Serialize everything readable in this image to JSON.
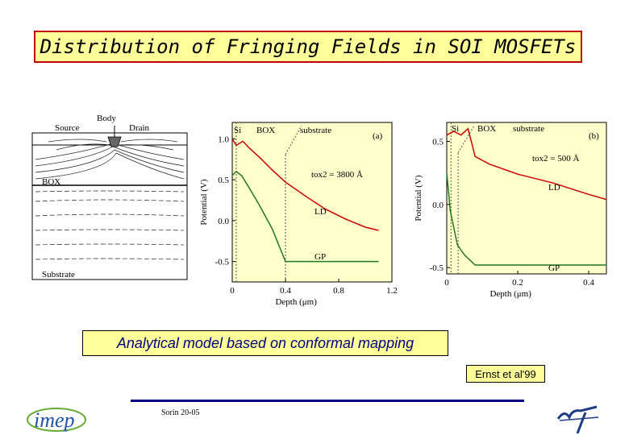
{
  "title": "Distribution of Fringing Fields in SOI MOSFETs",
  "left_sketch": {
    "labels": {
      "body": "Body",
      "source": "Source",
      "drain": "Drain",
      "box": "BOX",
      "substrate": "Substrate"
    }
  },
  "chart_data": [
    {
      "type": "line",
      "panel_label": "(a)",
      "xlabel": "Depth (μm)",
      "ylabel": "Potential (V)",
      "xlim": [
        0,
        1.2
      ],
      "ylim": [
        -0.75,
        1.2
      ],
      "xticks": [
        "0",
        "0.4",
        "0.8",
        "1.2"
      ],
      "yticks": [
        "1.0",
        "0.5",
        "0.0",
        "-0.5"
      ],
      "region_labels": [
        "Si",
        "BOX",
        "substrate"
      ],
      "annotation": "tox2 = 3800 Å",
      "series": [
        {
          "name": "LD",
          "color": "#cc0000",
          "x": [
            0,
            0.03,
            0.08,
            0.12,
            0.2,
            0.3,
            0.4,
            0.55,
            0.7,
            0.85,
            1.0,
            1.1
          ],
          "y": [
            1.0,
            0.92,
            0.97,
            0.9,
            0.78,
            0.62,
            0.47,
            0.3,
            0.14,
            0.02,
            -0.08,
            -0.12
          ]
        },
        {
          "name": "GP",
          "color": "#227722",
          "x": [
            0,
            0.03,
            0.07,
            0.12,
            0.2,
            0.3,
            0.4,
            1.1
          ],
          "y": [
            0.55,
            0.6,
            0.55,
            0.42,
            0.2,
            -0.1,
            -0.5,
            -0.5
          ]
        }
      ]
    },
    {
      "type": "line",
      "panel_label": "(b)",
      "xlabel": "Depth (μm)",
      "ylabel": "Potential (V)",
      "xlim": [
        0,
        0.45
      ],
      "ylim": [
        -0.55,
        0.65
      ],
      "xticks": [
        "0",
        "0.2",
        "0.4"
      ],
      "yticks": [
        "0.5",
        "0.0",
        "-0.5"
      ],
      "region_labels": [
        "Si",
        "BOX",
        "substrate"
      ],
      "annotation": "tox2 = 500 Å",
      "series": [
        {
          "name": "LD",
          "color": "#cc0000",
          "x": [
            0,
            0.02,
            0.04,
            0.06,
            0.08,
            0.12,
            0.2,
            0.3,
            0.4,
            0.45
          ],
          "y": [
            0.55,
            0.58,
            0.55,
            0.6,
            0.38,
            0.32,
            0.24,
            0.17,
            0.08,
            0.04
          ]
        },
        {
          "name": "GP",
          "color": "#227722",
          "x": [
            0,
            0.01,
            0.03,
            0.05,
            0.08,
            0.45
          ],
          "y": [
            0.25,
            -0.05,
            -0.32,
            -0.4,
            -0.48,
            -0.48
          ]
        }
      ]
    }
  ],
  "model_caption": "Analytical model based on conformal mapping",
  "reference": "Ernst et al'99",
  "footer": "Sorin 20-05",
  "logos": {
    "left": "imep",
    "right": "n7"
  },
  "colors": {
    "highlight": "#ffff99",
    "title_border": "#c00000",
    "accent": "#000080"
  }
}
